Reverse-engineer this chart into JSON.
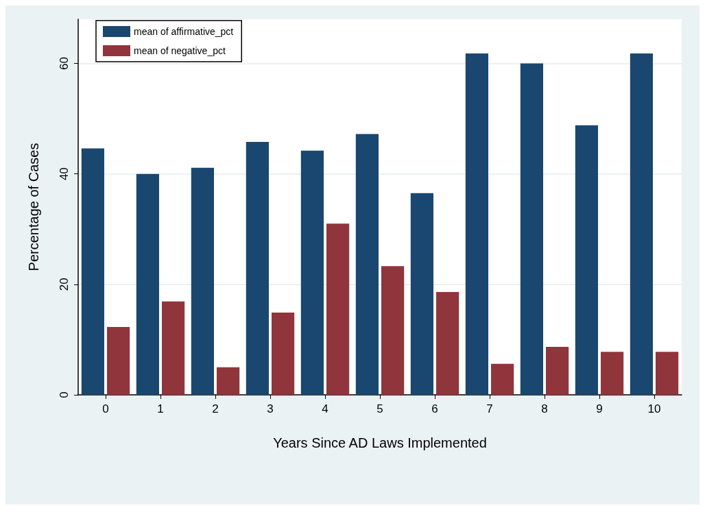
{
  "chart_data": {
    "type": "bar",
    "xlabel": "Years Since AD Laws Implemented",
    "ylabel": "Percentage of Cases",
    "categories": [
      "0",
      "1",
      "2",
      "3",
      "4",
      "5",
      "6",
      "7",
      "8",
      "9",
      "10"
    ],
    "series": [
      {
        "name": "mean of affirmative_pct",
        "color": "#1a476f",
        "values": [
          44.6,
          40.0,
          41.1,
          45.8,
          44.2,
          47.2,
          36.5,
          61.8,
          60.0,
          48.8,
          61.8
        ]
      },
      {
        "name": "mean of negative_pct",
        "color": "#90353b",
        "values": [
          12.3,
          16.9,
          5.0,
          14.9,
          31.0,
          23.3,
          18.6,
          5.6,
          8.7,
          7.8,
          7.8
        ]
      }
    ],
    "ylim": [
      0,
      68
    ],
    "yticks": [
      0,
      20,
      40,
      60
    ],
    "grid": "y",
    "legend": "top left"
  }
}
